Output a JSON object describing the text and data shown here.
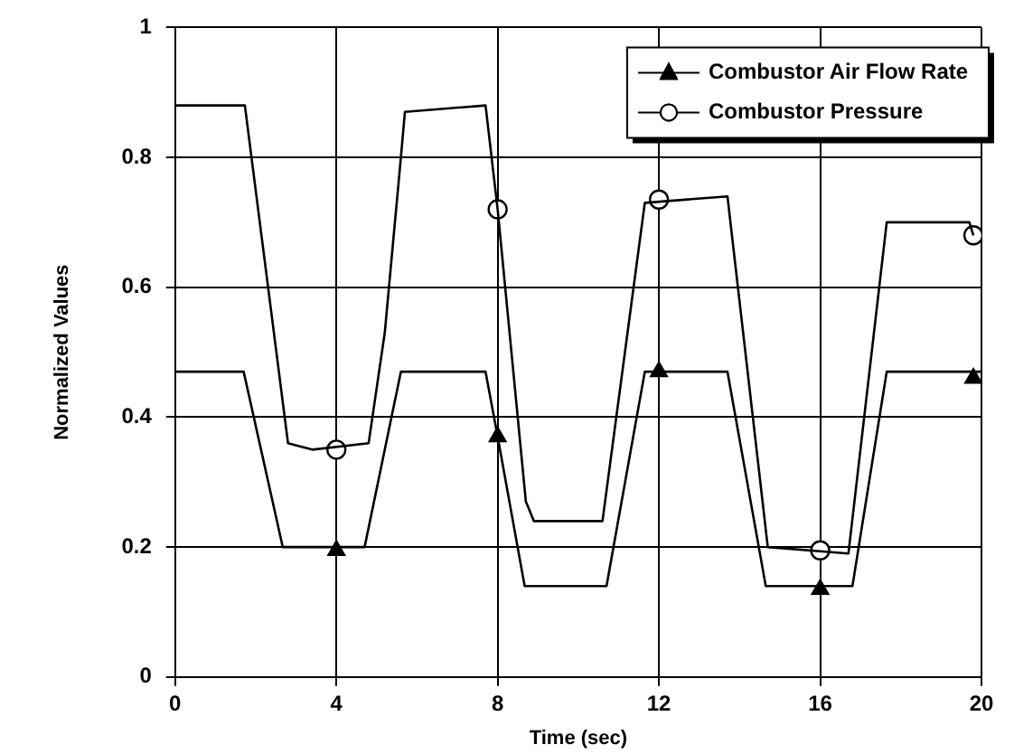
{
  "chart_data": {
    "type": "line",
    "xlabel": "Time (sec)",
    "ylabel": "Normalized Values",
    "xlim": [
      0,
      20
    ],
    "xticks": [
      0,
      4,
      8,
      12,
      16,
      20
    ],
    "ylim": [
      0,
      1
    ],
    "yticks": [
      0,
      0.2,
      0.4,
      0.6,
      0.8,
      1
    ],
    "grid": true,
    "legend": "top right",
    "marker": "none",
    "line_style": "solid",
    "series": [
      {
        "name": "Combustor Air Flow Rate",
        "color": "#000000",
        "x": [
          0,
          1.7,
          2.67,
          4.7,
          5.6,
          7.7,
          8,
          8.67,
          10.7,
          11.65,
          13.7,
          14.65,
          16.8,
          17.65,
          20
        ],
        "values": [
          0.47,
          0.47,
          0.2,
          0.2,
          0.47,
          0.47,
          0.37,
          0.14,
          0.14,
          0.47,
          0.47,
          0.14,
          0.14,
          0.47,
          0.47
        ]
      },
      {
        "type": "scatter",
        "marker": "triangle",
        "color": "#000000",
        "x": [
          4,
          8,
          12,
          16,
          19.8
        ],
        "values": [
          0.195,
          0.37,
          0.47,
          0.135,
          0.46
        ]
      },
      {
        "name": "Combustor Pressure",
        "color": "#000000",
        "x": [
          0,
          1.73,
          2.8,
          3.4,
          4.8,
          5.2,
          5.6,
          5.7,
          7.7,
          8,
          8.7,
          8.9,
          10.6,
          11.65,
          13.7,
          14.7,
          16.7,
          17.65,
          19.7,
          19.8
        ],
        "values": [
          0.88,
          0.88,
          0.36,
          0.35,
          0.36,
          0.53,
          0.8,
          0.87,
          0.88,
          0.72,
          0.27,
          0.24,
          0.24,
          0.73,
          0.74,
          0.2,
          0.19,
          0.7,
          0.7,
          0.68
        ]
      },
      {
        "type": "scatter",
        "marker": "circle",
        "color": "#000000",
        "x": [
          4,
          8,
          12,
          16,
          19.8
        ],
        "values": [
          0.35,
          0.72,
          0.735,
          0.195,
          0.68
        ]
      }
    ]
  }
}
